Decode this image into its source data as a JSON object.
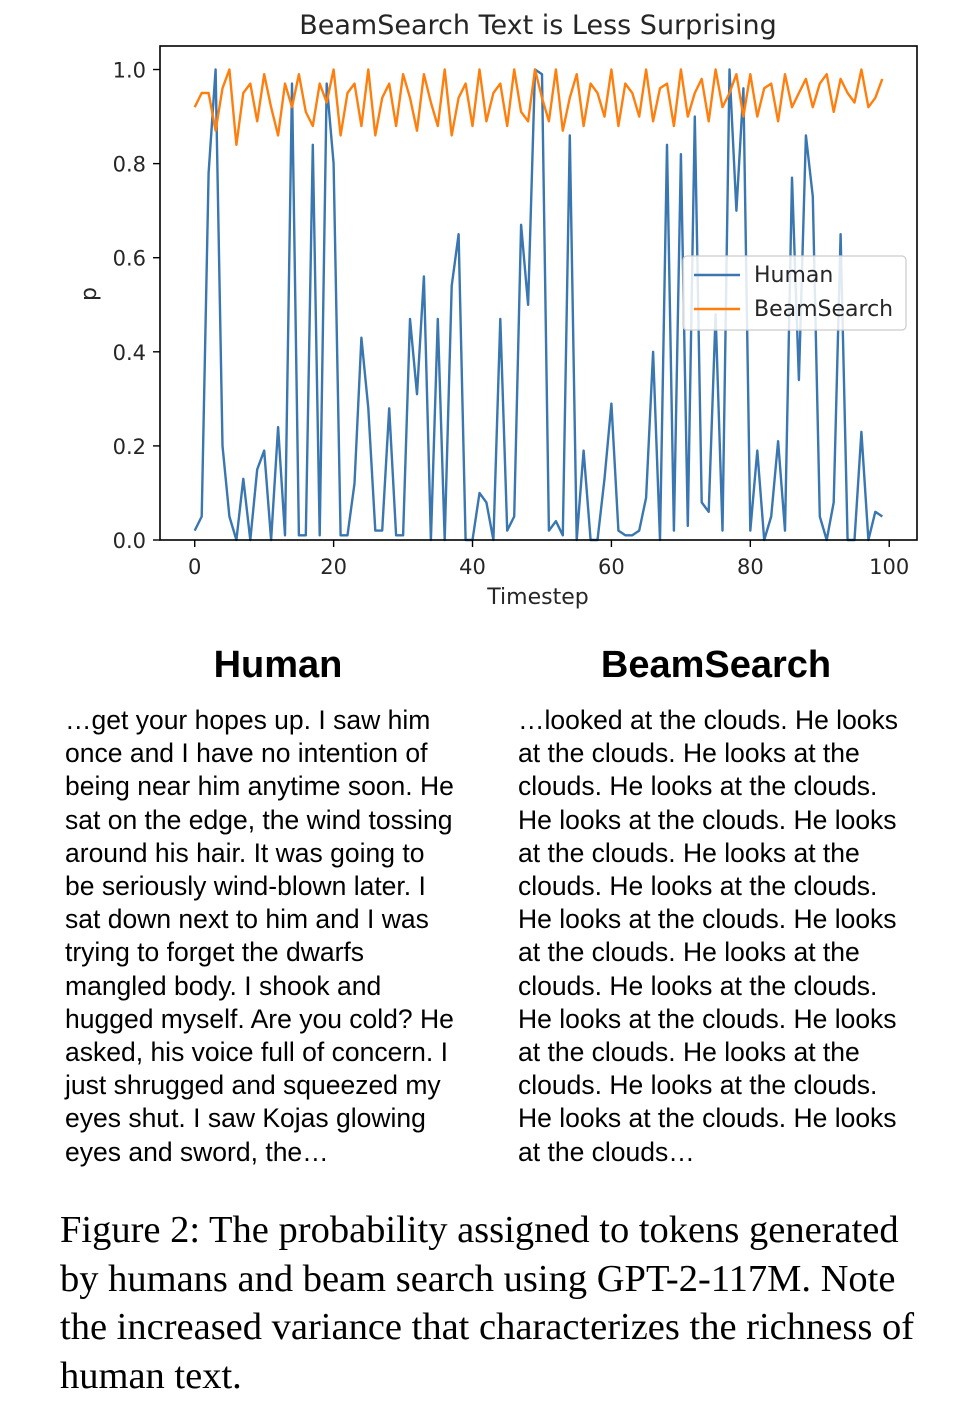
{
  "chart_data": {
    "type": "line",
    "title": "BeamSearch Text is Less Surprising",
    "xlabel": "Timestep",
    "ylabel": "p",
    "xlim": [
      -5,
      104
    ],
    "ylim": [
      0,
      1.05
    ],
    "xticks": [
      0,
      20,
      40,
      60,
      80,
      100
    ],
    "xtick_labels": [
      "0",
      "20",
      "40",
      "60",
      "80",
      "100"
    ],
    "yticks": [
      0.0,
      0.2,
      0.4,
      0.6,
      0.8,
      1.0
    ],
    "ytick_labels": [
      "0.0",
      "0.2",
      "0.4",
      "0.6",
      "0.8",
      "1.0"
    ],
    "grid": false,
    "legend_position": "center-right",
    "series": [
      {
        "name": "Human",
        "color": "#3a76b0",
        "x": [
          0,
          1,
          2,
          3,
          4,
          5,
          6,
          7,
          8,
          9,
          10,
          11,
          12,
          13,
          14,
          15,
          16,
          17,
          18,
          19,
          20,
          21,
          22,
          23,
          24,
          25,
          26,
          27,
          28,
          29,
          30,
          31,
          32,
          33,
          34,
          35,
          36,
          37,
          38,
          39,
          40,
          41,
          42,
          43,
          44,
          45,
          46,
          47,
          48,
          49,
          50,
          51,
          52,
          53,
          54,
          55,
          56,
          57,
          58,
          59,
          60,
          61,
          62,
          63,
          64,
          65,
          66,
          67,
          68,
          69,
          70,
          71,
          72,
          73,
          74,
          75,
          76,
          77,
          78,
          79,
          80,
          81,
          82,
          83,
          84,
          85,
          86,
          87,
          88,
          89,
          90,
          91,
          92,
          93,
          94,
          95,
          96,
          97,
          98,
          99
        ],
        "values": [
          0.02,
          0.05,
          0.78,
          1.0,
          0.2,
          0.05,
          0.0,
          0.13,
          0.0,
          0.15,
          0.19,
          0.0,
          0.24,
          0.01,
          0.97,
          0.01,
          0.01,
          0.84,
          0.01,
          0.97,
          0.8,
          0.01,
          0.01,
          0.12,
          0.43,
          0.28,
          0.02,
          0.02,
          0.28,
          0.01,
          0.01,
          0.47,
          0.31,
          0.56,
          0.0,
          0.47,
          0.0,
          0.54,
          0.65,
          0.0,
          0.0,
          0.1,
          0.08,
          0.0,
          0.47,
          0.02,
          0.05,
          0.67,
          0.5,
          1.0,
          0.99,
          0.02,
          0.04,
          0.01,
          0.86,
          0.0,
          0.19,
          0.0,
          0.0,
          0.13,
          0.29,
          0.02,
          0.01,
          0.01,
          0.02,
          0.09,
          0.4,
          0.0,
          0.84,
          0.02,
          0.82,
          0.03,
          0.9,
          0.08,
          0.06,
          0.48,
          0.02,
          1.0,
          0.7,
          0.96,
          0.02,
          0.19,
          0.0,
          0.05,
          0.21,
          0.02,
          0.77,
          0.34,
          0.86,
          0.73,
          0.05,
          0.0,
          0.08,
          0.65,
          0.0,
          0.0,
          0.23,
          0.0,
          0.06,
          0.05
        ]
      },
      {
        "name": "BeamSearch",
        "color": "#ff7f0e",
        "x": [
          0,
          1,
          2,
          3,
          4,
          5,
          6,
          7,
          8,
          9,
          10,
          11,
          12,
          13,
          14,
          15,
          16,
          17,
          18,
          19,
          20,
          21,
          22,
          23,
          24,
          25,
          26,
          27,
          28,
          29,
          30,
          31,
          32,
          33,
          34,
          35,
          36,
          37,
          38,
          39,
          40,
          41,
          42,
          43,
          44,
          45,
          46,
          47,
          48,
          49,
          50,
          51,
          52,
          53,
          54,
          55,
          56,
          57,
          58,
          59,
          60,
          61,
          62,
          63,
          64,
          65,
          66,
          67,
          68,
          69,
          70,
          71,
          72,
          73,
          74,
          75,
          76,
          77,
          78,
          79,
          80,
          81,
          82,
          83,
          84,
          85,
          86,
          87,
          88,
          89,
          90,
          91,
          92,
          93,
          94,
          95,
          96,
          97,
          98,
          99
        ],
        "values": [
          0.92,
          0.95,
          0.95,
          0.87,
          0.96,
          1.0,
          0.84,
          0.95,
          0.97,
          0.89,
          0.99,
          0.92,
          0.86,
          0.97,
          0.92,
          0.99,
          0.91,
          0.88,
          0.97,
          0.93,
          1.0,
          0.86,
          0.95,
          0.97,
          0.88,
          1.0,
          0.86,
          0.94,
          0.97,
          0.88,
          0.99,
          0.94,
          0.87,
          0.99,
          0.93,
          0.88,
          1.0,
          0.86,
          0.94,
          0.97,
          0.88,
          1.0,
          0.89,
          0.95,
          0.97,
          0.88,
          1.0,
          0.91,
          0.89,
          1.0,
          0.94,
          0.89,
          1.0,
          0.87,
          0.94,
          0.99,
          0.88,
          0.97,
          0.95,
          0.9,
          1.0,
          0.88,
          0.97,
          0.95,
          0.9,
          1.0,
          0.89,
          0.96,
          0.97,
          0.88,
          1.0,
          0.9,
          0.95,
          0.98,
          0.89,
          1.0,
          0.92,
          0.95,
          0.99,
          0.9,
          0.99,
          0.9,
          0.96,
          0.97,
          0.89,
          0.99,
          0.92,
          0.95,
          0.98,
          0.92,
          0.97,
          0.99,
          0.91,
          0.98,
          0.95,
          0.93,
          1.0,
          0.92,
          0.94,
          0.98
        ]
      }
    ]
  },
  "human": {
    "title": "Human",
    "lines": [
      "…get your hopes up. I saw him",
      "once and I have no intention of",
      "being near him anytime soon. He",
      "sat on the edge, the wind tossing",
      "around his hair. It was going to",
      "be seriously wind-blown later. I",
      "sat down next to him and I was",
      "trying to forget the dwarfs",
      "mangled body. I shook and",
      "hugged myself. Are you cold? He",
      "asked, his voice full of concern. I",
      "just shrugged and squeezed my",
      "eyes shut. I saw Kojas glowing",
      "eyes and sword, the…"
    ]
  },
  "beam": {
    "title": "BeamSearch",
    "lines": [
      "…looked at the clouds. He looks",
      "at the clouds. He looks at the",
      "clouds. He looks at the clouds.",
      "He looks at the clouds. He looks",
      "at the clouds. He looks at the",
      "clouds. He looks at the clouds.",
      "He looks at the clouds. He looks",
      "at the clouds. He looks at the",
      "clouds. He looks at the clouds.",
      "He looks at the clouds. He looks",
      "at the clouds. He looks at the",
      "clouds. He looks at the clouds.",
      "He looks at the clouds. He looks",
      "at the clouds…"
    ]
  },
  "caption": {
    "lines": [
      "Figure 2: The probability assigned to tokens generated",
      "by humans and beam search using GPT-2-117M. Note",
      "the increased variance that characterizes the richness of",
      "human text."
    ]
  }
}
